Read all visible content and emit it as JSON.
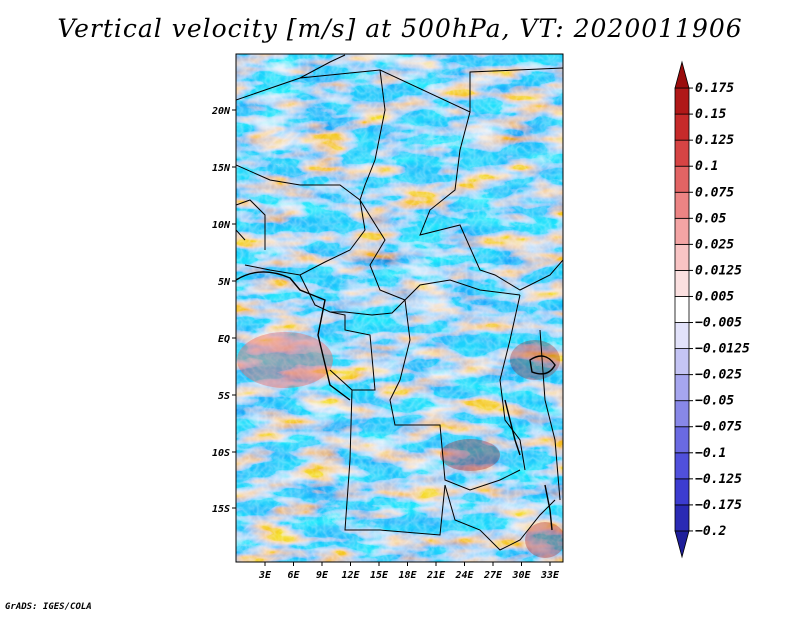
{
  "title": "Vertical velocity [m/s] at 500hPa, VT: 2020011906",
  "credit": "GrADS: IGES/COLA",
  "axes": {
    "lat_labels": [
      "20N",
      "15N",
      "10N",
      "5N",
      "EQ",
      "5S",
      "10S",
      "15S"
    ],
    "lon_labels": [
      "3E",
      "6E",
      "9E",
      "12E",
      "15E",
      "18E",
      "21E",
      "24E",
      "27E",
      "30E",
      "33E"
    ]
  },
  "colorbar": {
    "colors": [
      "#1e1e9a",
      "#2a2ab4",
      "#3c3cd0",
      "#5050dc",
      "#6a6ae2",
      "#8888e8",
      "#a6a6ef",
      "#c4c4f4",
      "#e2e2fa",
      "#ffffff",
      "#fbe0e0",
      "#f8c4c4",
      "#f3a4a4",
      "#ec8484",
      "#e26464",
      "#d64444",
      "#c62a2a",
      "#b01818",
      "#9a0c0c"
    ],
    "labels": [
      "0.175",
      "0.15",
      "0.125",
      "0.1",
      "0.075",
      "0.05",
      "0.025",
      "0.0125",
      "0.005",
      "−0.005",
      "−0.0125",
      "−0.025",
      "−0.05",
      "−0.075",
      "−0.1",
      "−0.125",
      "−0.175",
      "−0.2"
    ]
  }
}
